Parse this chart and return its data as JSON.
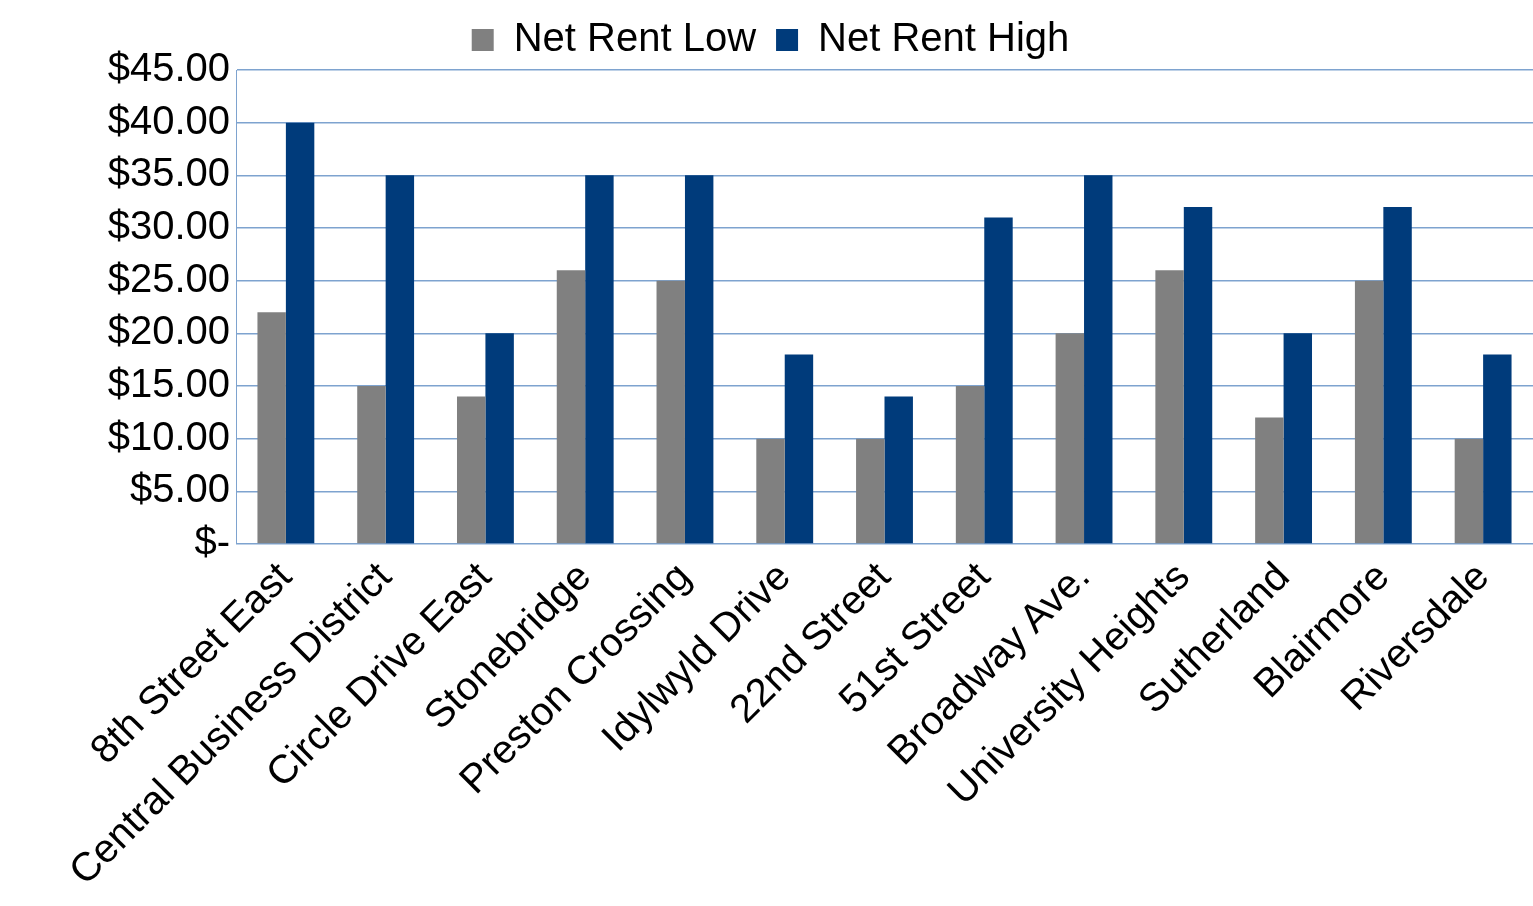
{
  "chart_data": {
    "type": "bar",
    "categories": [
      "8th Street East",
      "Central Business District",
      "Circle Drive East",
      "Stonebridge",
      "Preston Crossing",
      "Idylwyld Drive",
      "22nd Street",
      "51st Street",
      "Broadway Ave.",
      "University Heights",
      "Sutherland",
      "Blairmore",
      "Riversdale"
    ],
    "series": [
      {
        "name": "Net Rent Low",
        "color": "#808080",
        "values": [
          22,
          15,
          14,
          26,
          25,
          10,
          10,
          15,
          20,
          26,
          12,
          25,
          10
        ]
      },
      {
        "name": "Net Rent High",
        "color": "#003b7b",
        "values": [
          40,
          35,
          20,
          35,
          35,
          18,
          14,
          31,
          35,
          32,
          20,
          32,
          18
        ]
      }
    ],
    "ylim": [
      0,
      45
    ],
    "yticks": [
      {
        "value": 0,
        "label": "$-"
      },
      {
        "value": 5,
        "label": "$5.00"
      },
      {
        "value": 10,
        "label": "$10.00"
      },
      {
        "value": 15,
        "label": "$15.00"
      },
      {
        "value": 20,
        "label": "$20.00"
      },
      {
        "value": 25,
        "label": "$25.00"
      },
      {
        "value": 30,
        "label": "$30.00"
      },
      {
        "value": 35,
        "label": "$35.00"
      },
      {
        "value": 40,
        "label": "$40.00"
      },
      {
        "value": 45,
        "label": "$45.00"
      }
    ],
    "grid": "y",
    "legend": "top"
  }
}
